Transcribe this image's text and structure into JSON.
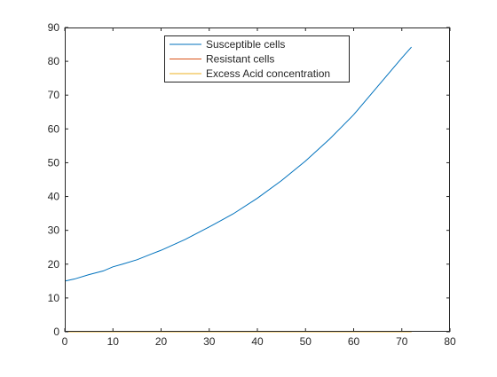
{
  "chart_data": {
    "type": "line",
    "title": "",
    "xlabel": "",
    "ylabel": "",
    "xlim": [
      0,
      80
    ],
    "ylim": [
      0,
      90
    ],
    "xticks": [
      0,
      10,
      20,
      30,
      40,
      50,
      60,
      70,
      80
    ],
    "yticks": [
      0,
      10,
      20,
      30,
      40,
      50,
      60,
      70,
      80,
      90
    ],
    "grid": false,
    "legend_position": "top-center",
    "series": [
      {
        "name": "Susceptible cells",
        "color": "#0072BD",
        "x": [
          0,
          2,
          5,
          8,
          10,
          12,
          15,
          18,
          20,
          25,
          30,
          35,
          40,
          45,
          50,
          55,
          60,
          65,
          70,
          72
        ],
        "y": [
          15.0,
          15.6,
          16.9,
          18.0,
          19.2,
          20.0,
          21.3,
          23.0,
          24.1,
          27.3,
          31.0,
          34.9,
          39.5,
          44.7,
          50.5,
          57.0,
          64.2,
          72.6,
          81.0,
          84.2
        ]
      },
      {
        "name": "Resistant cells",
        "color": "#D95319",
        "x": [
          0,
          72
        ],
        "y": [
          0,
          0
        ]
      },
      {
        "name": "Excess Acid concentration",
        "color": "#EDB120",
        "x": [
          0,
          72
        ],
        "y": [
          0,
          0
        ]
      }
    ]
  }
}
